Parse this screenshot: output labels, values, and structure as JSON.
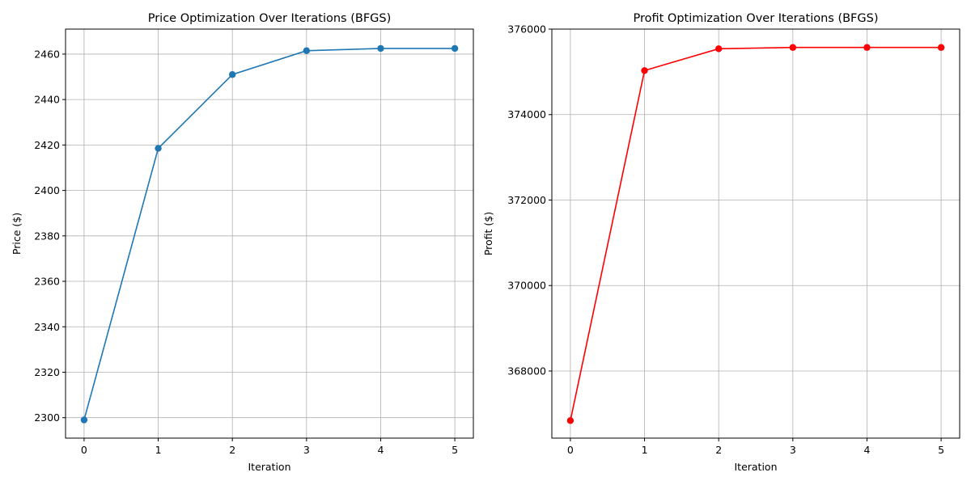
{
  "chart_data": [
    {
      "type": "line",
      "title": "Price Optimization Over Iterations (BFGS)",
      "xlabel": "Iteration",
      "ylabel": "Price ($)",
      "x": [
        0,
        1,
        2,
        3,
        4,
        5
      ],
      "series": [
        {
          "values": [
            2299,
            2418.5,
            2451,
            2461.5,
            2462.5,
            2462.5
          ],
          "color": "#1f77b4",
          "marker": "circle"
        }
      ],
      "xlim": [
        -0.25,
        5.25
      ],
      "ylim": [
        2291,
        2471
      ],
      "xticks": [
        0,
        1,
        2,
        3,
        4,
        5
      ],
      "yticks": [
        2300,
        2320,
        2340,
        2360,
        2380,
        2400,
        2420,
        2440,
        2460
      ],
      "grid": true
    },
    {
      "type": "line",
      "title": "Profit Optimization Over Iterations (BFGS)",
      "xlabel": "Iteration",
      "ylabel": "Profit ($)",
      "x": [
        0,
        1,
        2,
        3,
        4,
        5
      ],
      "series": [
        {
          "values": [
            366840,
            375030,
            375540,
            375570,
            375570,
            375570
          ],
          "color": "#ff0000",
          "marker": "circle"
        }
      ],
      "xlim": [
        -0.25,
        5.25
      ],
      "ylim": [
        366430,
        376000
      ],
      "xticks": [
        0,
        1,
        2,
        3,
        4,
        5
      ],
      "yticks": [
        368000,
        370000,
        372000,
        374000,
        376000
      ],
      "grid": true
    }
  ]
}
